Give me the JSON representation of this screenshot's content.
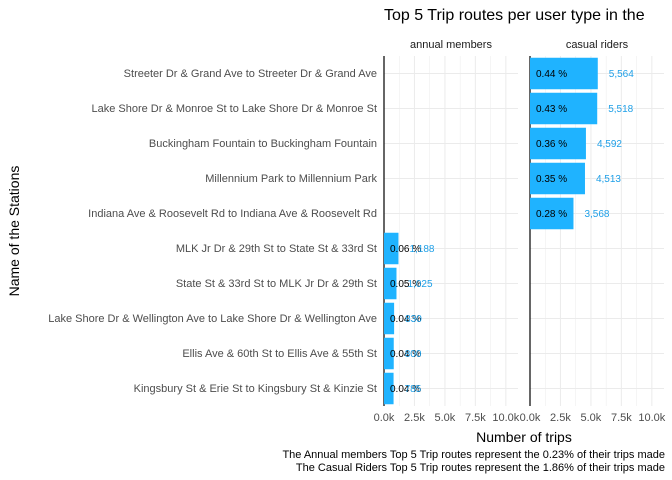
{
  "chart_data": {
    "type": "bar",
    "orientation": "horizontal",
    "title": "Top 5 Trip routes per user type in the",
    "xlabel": "Number of trips",
    "ylabel": "Name of the Stations",
    "xlim": [
      0,
      11000
    ],
    "x_ticks": [
      0,
      2500,
      5000,
      7500,
      10000
    ],
    "x_tick_labels": [
      "0.0k",
      "2.5k",
      "5.0k",
      "7.5k",
      "10.0k"
    ],
    "grid": true,
    "bar_color": "#1FB3FF",
    "count_label_color": "#1FA0E8",
    "categories": [
      "Streeter Dr & Grand Ave to Streeter Dr & Grand Ave",
      "Lake Shore Dr & Monroe St to Lake Shore Dr & Monroe St",
      "Buckingham Fountain to Buckingham Fountain",
      "Millennium Park to Millennium Park",
      "Indiana Ave & Roosevelt Rd to Indiana Ave & Roosevelt Rd",
      "MLK Jr Dr & 29th St to State St & 33rd St",
      "State St & 33rd St to MLK Jr Dr & 29th St",
      "Lake Shore Dr & Wellington Ave to Lake Shore Dr & Wellington Ave",
      "Ellis Ave & 60th St to Ellis Ave & 55th St",
      "Kingsbury St & Erie St to Kingsbury St & Kinzie St"
    ],
    "panels": [
      {
        "name": "annual members",
        "bars": [
          {
            "category": "MLK Jr Dr & 29th St to State St & 33rd St",
            "value": 1188,
            "pct_label": "0.06 %",
            "count_label": "1,188"
          },
          {
            "category": "State St & 33rd St to MLK Jr Dr & 29th St",
            "value": 1025,
            "pct_label": "0.05 %",
            "count_label": "1,025"
          },
          {
            "category": "Lake Shore Dr & Wellington Ave to Lake Shore Dr & Wellington Ave",
            "value": 830,
            "pct_label": "0.04 %",
            "count_label": "830"
          },
          {
            "category": "Ellis Ave & 60th St to Ellis Ave & 55th St",
            "value": 800,
            "pct_label": "0.04 %",
            "count_label": "800"
          },
          {
            "category": "Kingsbury St & Erie St to Kingsbury St & Kinzie St",
            "value": 785,
            "pct_label": "0.04 %",
            "count_label": "785"
          }
        ]
      },
      {
        "name": "casual riders",
        "bars": [
          {
            "category": "Streeter Dr & Grand Ave to Streeter Dr & Grand Ave",
            "value": 5564,
            "pct_label": "0.44 %",
            "count_label": "5,564"
          },
          {
            "category": "Lake Shore Dr & Monroe St to Lake Shore Dr & Monroe St",
            "value": 5518,
            "pct_label": "0.43 %",
            "count_label": "5,518"
          },
          {
            "category": "Buckingham Fountain to Buckingham Fountain",
            "value": 4592,
            "pct_label": "0.36 %",
            "count_label": "4,592"
          },
          {
            "category": "Millennium Park to Millennium Park",
            "value": 4513,
            "pct_label": "0.35 %",
            "count_label": "4,513"
          },
          {
            "category": "Indiana Ave & Roosevelt Rd to Indiana Ave & Roosevelt Rd",
            "value": 3568,
            "pct_label": "0.28 %",
            "count_label": "3,568"
          }
        ]
      }
    ],
    "captions": [
      "The Annual members Top 5 Trip routes represent the 0.23% of their trips made",
      "The Casual Riders Top 5 Trip routes represent the 1.86% of their trips made"
    ]
  }
}
